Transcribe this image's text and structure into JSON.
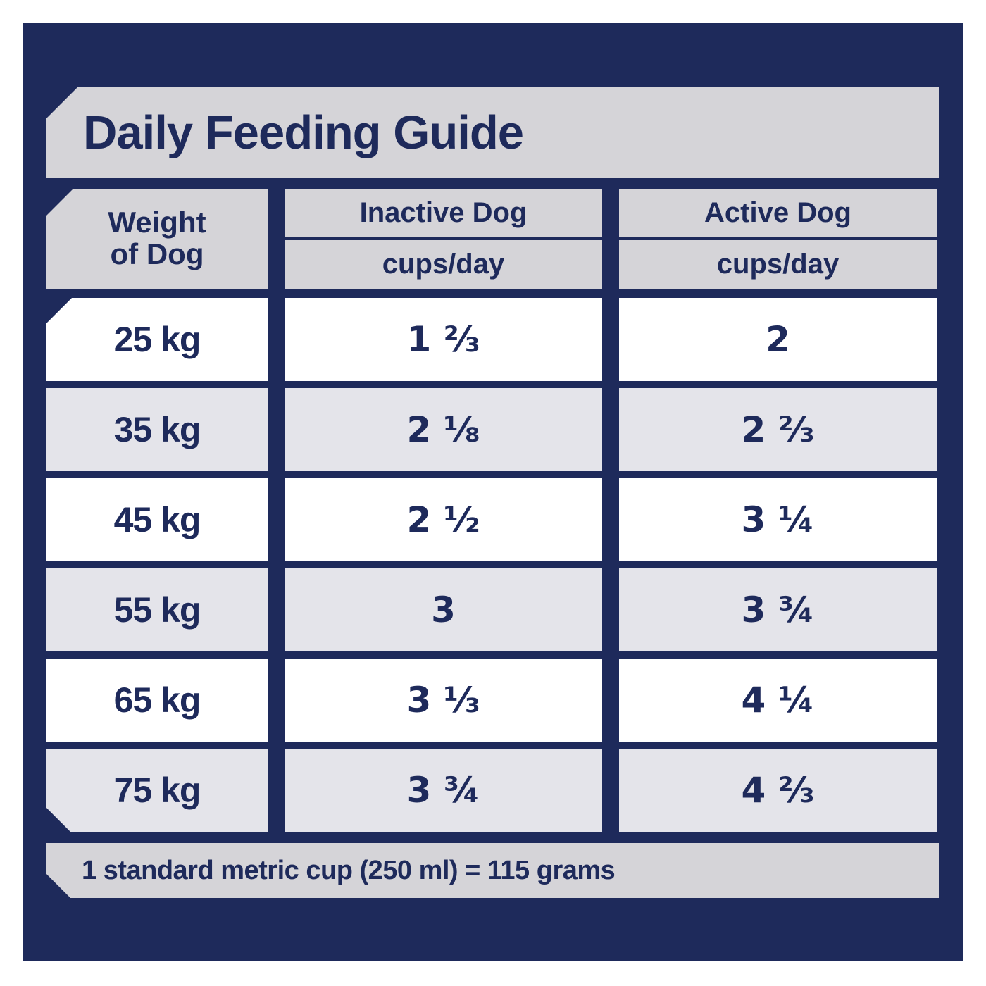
{
  "colors": {
    "navy": "#1e2a5b",
    "band_gray": "#d5d4d8",
    "row_gray": "#e4e4ea",
    "row_white": "#ffffff"
  },
  "title": "Daily Feeding Guide",
  "table": {
    "weight_header": {
      "line1": "Weight",
      "line2": "of Dog"
    },
    "columns": [
      {
        "label": "Inactive Dog",
        "sub": "cups/day"
      },
      {
        "label": "Active Dog",
        "sub": "cups/day"
      }
    ],
    "rows": [
      {
        "weight": "25 kg",
        "inactive": "1 ⅔",
        "active": "2"
      },
      {
        "weight": "35 kg",
        "inactive": "2 ⅛",
        "active": "2 ⅔"
      },
      {
        "weight": "45 kg",
        "inactive": "2 ½",
        "active": "3 ¼"
      },
      {
        "weight": "55 kg",
        "inactive": "3",
        "active": "3 ¾"
      },
      {
        "weight": "65 kg",
        "inactive": "3 ⅓",
        "active": "4 ¼"
      },
      {
        "weight": "75 kg",
        "inactive": "3 ¾",
        "active": "4 ⅔"
      }
    ]
  },
  "footnote": "1 standard metric cup (250 ml) = 115 grams",
  "chart_data": {
    "type": "table",
    "title": "Daily Feeding Guide",
    "columns": [
      "Weight of Dog",
      "Inactive Dog cups/day",
      "Active Dog cups/day"
    ],
    "rows": [
      [
        "25 kg",
        "1 2/3",
        "2"
      ],
      [
        "35 kg",
        "2 1/8",
        "2 2/3"
      ],
      [
        "45 kg",
        "2 1/2",
        "3 1/4"
      ],
      [
        "55 kg",
        "3",
        "3 3/4"
      ],
      [
        "65 kg",
        "3 1/3",
        "4 1/4"
      ],
      [
        "75 kg",
        "3 3/4",
        "4 2/3"
      ]
    ],
    "footnote": "1 standard metric cup (250 ml) = 115 grams"
  }
}
